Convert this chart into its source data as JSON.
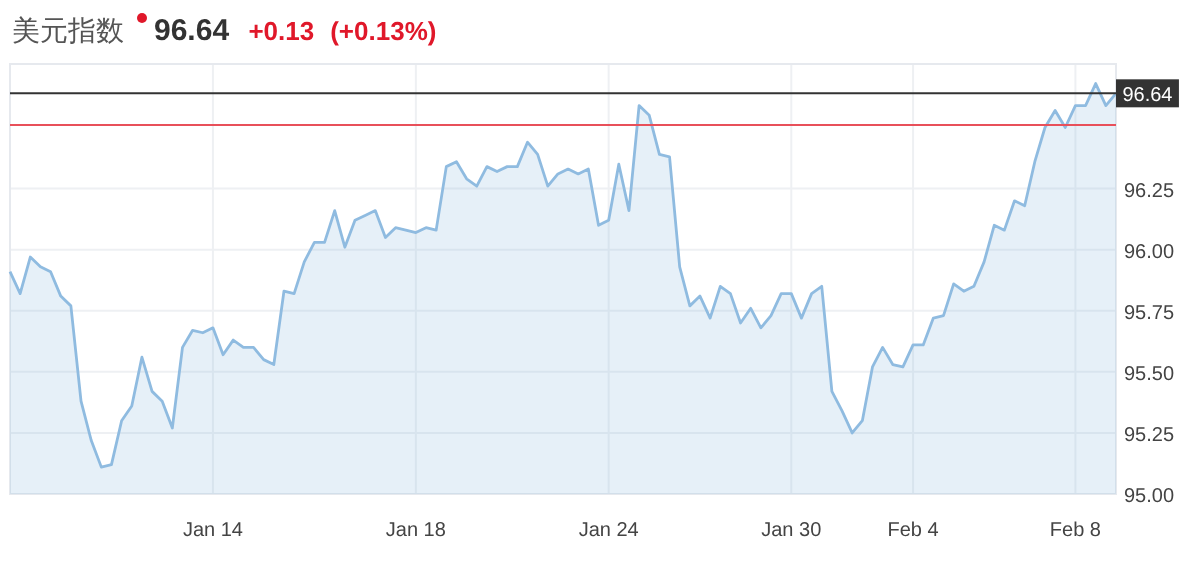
{
  "chart_data": {
    "type": "area",
    "title": "美元指数",
    "subtitle": "96.64",
    "annotations": [
      "+0.13",
      "(+0.13%)"
    ],
    "categories": [
      null,
      null,
      null,
      null,
      null,
      null,
      null,
      null,
      null,
      null,
      null,
      null,
      null,
      null,
      null,
      null,
      null,
      null,
      null,
      null,
      "Jan 14",
      null,
      null,
      null,
      null,
      null,
      null,
      null,
      null,
      null,
      null,
      null,
      null,
      null,
      null,
      null,
      null,
      null,
      null,
      null,
      "Jan 18",
      null,
      null,
      null,
      null,
      null,
      null,
      null,
      null,
      null,
      null,
      null,
      null,
      null,
      null,
      null,
      null,
      null,
      null,
      "Jan 24",
      null,
      null,
      null,
      null,
      null,
      null,
      null,
      null,
      null,
      null,
      null,
      null,
      null,
      null,
      null,
      null,
      null,
      "Jan 30",
      null,
      null,
      null,
      null,
      null,
      null,
      null,
      null,
      null,
      null,
      null,
      "Feb 4",
      null,
      null,
      null,
      null,
      null,
      null,
      null,
      null,
      null,
      null,
      null,
      null,
      null,
      null,
      null,
      "Feb 8",
      null,
      null,
      null,
      null
    ],
    "series": [
      {
        "color": "#8fbbe0",
        "values": [
          95.91,
          95.82,
          95.97,
          95.93,
          95.91,
          95.81,
          95.77,
          95.38,
          95.22,
          95.11,
          95.12,
          95.3,
          95.36,
          95.56,
          95.42,
          95.38,
          95.27,
          95.6,
          95.67,
          95.66,
          95.68,
          95.57,
          95.63,
          95.6,
          95.6,
          95.55,
          95.53,
          95.83,
          95.82,
          95.95,
          96.03,
          96.03,
          96.16,
          96.01,
          96.12,
          96.14,
          96.16,
          96.05,
          96.09,
          96.08,
          96.07,
          96.09,
          96.08,
          96.34,
          96.36,
          96.29,
          96.26,
          96.34,
          96.32,
          96.34,
          96.34,
          96.44,
          96.39,
          96.26,
          96.31,
          96.33,
          96.31,
          96.33,
          96.1,
          96.12,
          96.35,
          96.16,
          96.59,
          96.55,
          96.39,
          96.38,
          95.93,
          95.77,
          95.81,
          95.72,
          95.85,
          95.82,
          95.7,
          95.76,
          95.68,
          95.73,
          95.82,
          95.82,
          95.72,
          95.82,
          95.85,
          95.42,
          95.34,
          95.25,
          95.3,
          95.52,
          95.6,
          95.53,
          95.52,
          95.61,
          95.61,
          95.72,
          95.73,
          95.86,
          95.83,
          95.85,
          95.95,
          96.1,
          96.08,
          96.2,
          96.18,
          96.36,
          96.5,
          96.57,
          96.5,
          96.59,
          96.59,
          96.68,
          96.59,
          96.64
        ]
      }
    ],
    "ylim": [
      95,
      96.76
    ],
    "yticks": [
      {
        "value": 95,
        "label": "95.00"
      },
      {
        "value": 95.25,
        "label": "95.25"
      },
      {
        "value": 95.5,
        "label": "95.50"
      },
      {
        "value": 95.75,
        "label": "95.75"
      },
      {
        "value": 96,
        "label": "96.00"
      },
      {
        "value": 96.25,
        "label": "96.25"
      }
    ],
    "ref_lines": [
      {
        "axis": "y",
        "value": 96.64,
        "label": "96.64",
        "color": "#333333"
      },
      {
        "axis": "y",
        "value": 96.51,
        "color": "#e8505a"
      }
    ],
    "grid": true
  }
}
